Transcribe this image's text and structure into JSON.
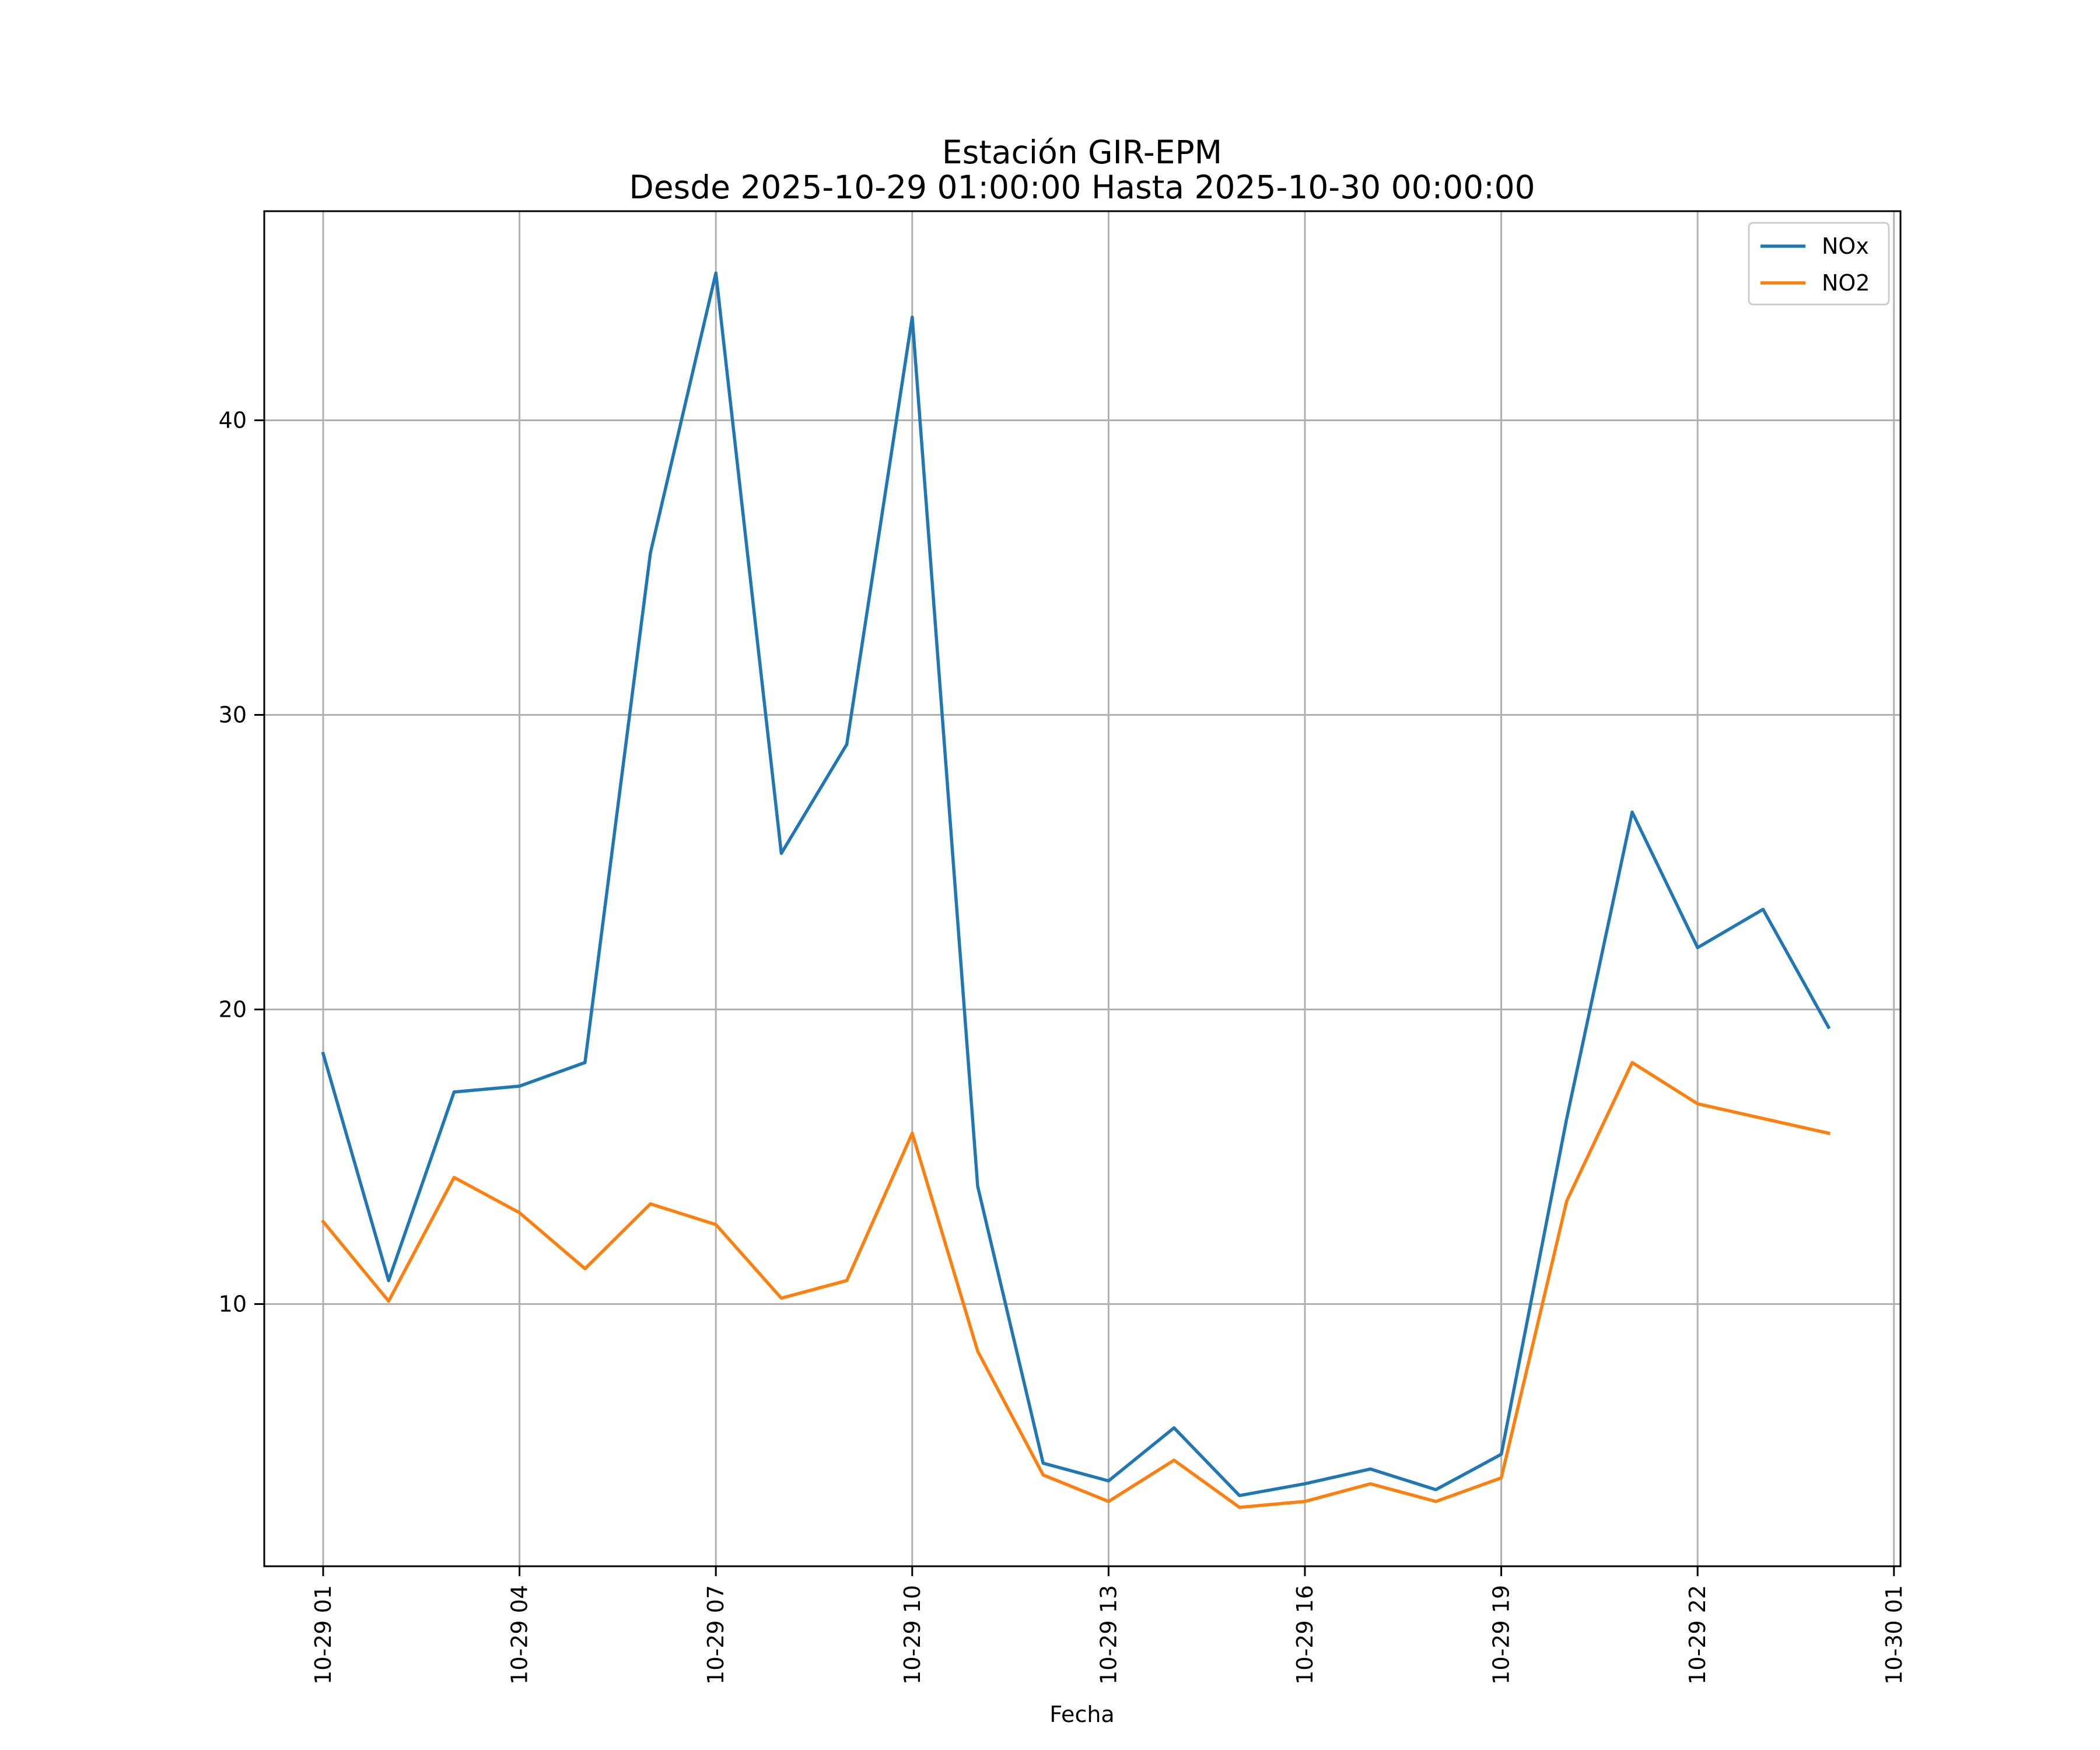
{
  "chart_data": {
    "type": "line",
    "title": "Estación GIR-EPM",
    "subtitle": "Desde 2025-10-29 01:00:00 Hasta 2025-10-30 00:00:00",
    "xlabel": "Fecha",
    "ylabel": "",
    "x": [
      "10-29 01:00",
      "10-29 02:00",
      "10-29 03:00",
      "10-29 04:00",
      "10-29 05:00",
      "10-29 06:00",
      "10-29 07:00",
      "10-29 08:00",
      "10-29 09:00",
      "10-29 10:00",
      "10-29 11:00",
      "10-29 12:00",
      "10-29 13:00",
      "10-29 14:00",
      "10-29 15:00",
      "10-29 16:00",
      "10-29 17:00",
      "10-29 18:00",
      "10-29 19:00",
      "10-29 20:00",
      "10-29 21:00",
      "10-29 22:00",
      "10-29 23:00",
      "10-30 00:00"
    ],
    "xlim": [
      "10-29 00:06",
      "10-30 01:06"
    ],
    "ylim": [
      1.1,
      47.1
    ],
    "x_ticks": [
      "10-29 01",
      "10-29 04",
      "10-29 07",
      "10-29 10",
      "10-29 13",
      "10-29 16",
      "10-29 19",
      "10-29 22",
      "10-30 01"
    ],
    "y_ticks": [
      10,
      20,
      30,
      40
    ],
    "grid": true,
    "legend_position": "top-right",
    "series": [
      {
        "name": "NOx",
        "color": "#1f77b4",
        "values": [
          18.5,
          10.8,
          17.2,
          17.4,
          18.2,
          35.5,
          45.0,
          25.3,
          29.0,
          43.5,
          14.0,
          4.6,
          4.0,
          5.8,
          3.5,
          3.9,
          4.4,
          3.7,
          4.9,
          16.3,
          26.7,
          22.1,
          23.4,
          19.4
        ]
      },
      {
        "name": "NO2",
        "color": "#ff7f0e",
        "values": [
          12.8,
          10.1,
          14.3,
          13.1,
          11.2,
          13.4,
          12.7,
          10.2,
          10.8,
          15.8,
          8.4,
          4.2,
          3.3,
          4.7,
          3.1,
          3.3,
          3.9,
          3.3,
          4.1,
          13.5,
          18.2,
          16.8,
          16.3,
          15.8
        ]
      }
    ]
  }
}
